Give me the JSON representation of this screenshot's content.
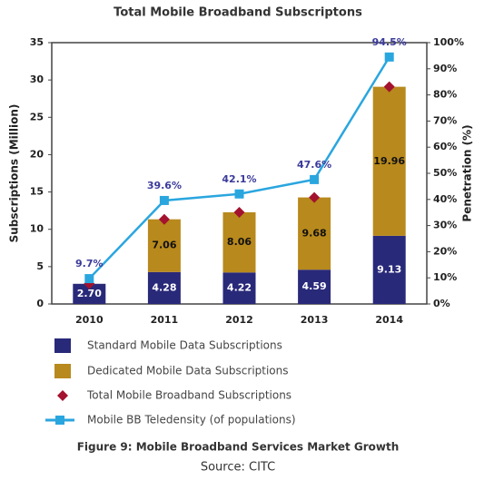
{
  "chart_data": {
    "type": "bar",
    "stacked": true,
    "title": "Total Mobile Broadband Subscriptons",
    "y_label": "Subscriptions (Million)",
    "y2_label": "Penetration (%)",
    "caption": "Figure 9: Mobile Broadband Services Market Growth",
    "source": "Source: CITC",
    "categories": [
      "2010",
      "2011",
      "2012",
      "2013",
      "2014"
    ],
    "series": [
      {
        "name": "Standard Mobile Data Subscriptions",
        "type": "bar",
        "color": "#29297a",
        "values": [
          2.7,
          4.28,
          4.22,
          4.59,
          9.13
        ],
        "value_labels": [
          "2.70",
          "4.28",
          "4.22",
          "4.59",
          "9.13"
        ]
      },
      {
        "name": "Dedicated Mobile Data Subscriptions",
        "type": "bar",
        "color": "#b8891c",
        "values": [
          null,
          7.06,
          8.06,
          9.68,
          19.96
        ]
      },
      {
        "name": "Total Mobile Broadband Subscriptions",
        "type": "scatter",
        "color": "#a3122e",
        "values": [
          2.7,
          11.34,
          12.28,
          14.27,
          29.09
        ]
      },
      {
        "name": "Mobile BB Teledensity (of populations)",
        "type": "line",
        "axis": "y2",
        "color": "#2aa6df",
        "values": [
          9.7,
          39.6,
          42.1,
          47.6,
          94.5
        ],
        "value_labels": [
          "9.7%",
          "39.6%",
          "42.1%",
          "47.6%",
          "94.5%"
        ]
      }
    ],
    "ylim": [
      0,
      35
    ],
    "yticks": [
      0,
      5,
      10,
      15,
      20,
      25,
      30,
      35
    ],
    "y2lim": [
      0,
      100
    ],
    "y2ticks": [
      {
        "value": 0,
        "label": "0%"
      },
      {
        "value": 10,
        "label": "10%"
      },
      {
        "value": 20,
        "label": "20%"
      },
      {
        "value": 30,
        "label": "30%"
      },
      {
        "value": 40,
        "label": "40%"
      },
      {
        "value": 50,
        "label": "50%"
      },
      {
        "value": 60,
        "label": "60%"
      },
      {
        "value": 70,
        "label": "70%"
      },
      {
        "value": 80,
        "label": "80%"
      },
      {
        "value": 90,
        "label": "90%"
      },
      {
        "value": 100,
        "label": "100%"
      }
    ],
    "grid": false
  }
}
